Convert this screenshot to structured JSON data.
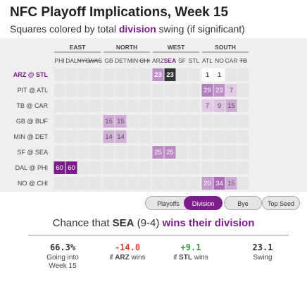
{
  "title": "NFC Playoff Implications, Week 15",
  "subtitle": {
    "before": "Squares colored by total ",
    "highlight": "division",
    "after": " swing (if significant)"
  },
  "colors": {
    "accent": "#7b1d8a",
    "negative": "#e0462e",
    "positive": "#3a9b3a"
  },
  "chart_data": {
    "type": "heatmap",
    "metric": "division",
    "focus_team": "SEA",
    "divisions": [
      {
        "name": "EAST",
        "teams": [
          "PHI",
          "DAL",
          "NYG",
          "WAS"
        ]
      },
      {
        "name": "NORTH",
        "teams": [
          "GB",
          "DET",
          "MIN",
          "CHI"
        ]
      },
      {
        "name": "WEST",
        "teams": [
          "ARZ",
          "SEA",
          "SF",
          "STL"
        ]
      },
      {
        "name": "SOUTH",
        "teams": [
          "ATL",
          "NO",
          "CAR",
          "TB"
        ]
      }
    ],
    "eliminated": [
      "NYG",
      "WAS",
      "CHI",
      "TB"
    ],
    "games": [
      {
        "label": "ARZ @ STL",
        "active": true,
        "cells": {
          "ARZ": 23,
          "SEA": 23,
          "ATL": 1,
          "NO": 1
        }
      },
      {
        "label": "PIT @ ATL",
        "active": false,
        "cells": {
          "ATL": 29,
          "NO": 23,
          "CAR": 7
        }
      },
      {
        "label": "TB @ CAR",
        "active": false,
        "cells": {
          "ATL": 7,
          "NO": 9,
          "CAR": 15
        }
      },
      {
        "label": "GB @ BUF",
        "active": false,
        "cells": {
          "GB": 15,
          "DET": 15
        }
      },
      {
        "label": "MIN @ DET",
        "active": false,
        "cells": {
          "GB": 14,
          "DET": 14
        }
      },
      {
        "label": "SF @ SEA",
        "active": false,
        "cells": {
          "ARZ": 25,
          "SEA": 25
        }
      },
      {
        "label": "DAL @ PHI",
        "active": false,
        "cells": {
          "PHI": 60,
          "DAL": 60
        }
      },
      {
        "label": "NO @ CHI",
        "active": false,
        "cells": {
          "ATL": 20,
          "NO": 34,
          "CAR": 15
        }
      }
    ]
  },
  "tabs": [
    {
      "label": "Playoffs",
      "active": false
    },
    {
      "label": "Division",
      "active": true
    },
    {
      "label": "Bye",
      "active": false
    },
    {
      "label": "Top Seed",
      "active": false
    }
  ],
  "chance": {
    "prefix": "Chance that ",
    "team": "SEA",
    "record": " (9-4) ",
    "highlight": "wins their division"
  },
  "stats": {
    "going_into": {
      "value": "66.3%",
      "label_line1": "Going into",
      "label_line2": "Week 15"
    },
    "if_arz": {
      "value": "-14.0",
      "label_prefix": "if ",
      "label_team": "ARZ",
      "label_suffix": " wins"
    },
    "if_stl": {
      "value": "+9.1",
      "label_prefix": "if ",
      "label_team": "STL",
      "label_suffix": " wins"
    },
    "swing": {
      "value": "23.1",
      "label": "Swing"
    }
  }
}
